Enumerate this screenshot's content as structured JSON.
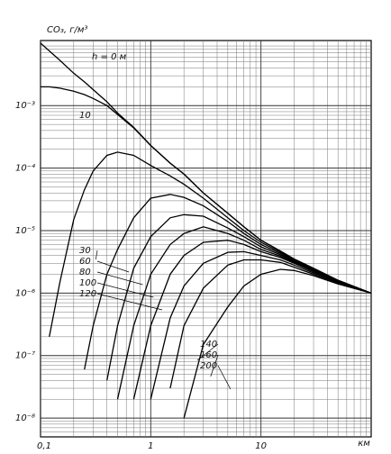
{
  "chart_data": {
    "type": "line",
    "y_label": "CO₃, г/м³",
    "x_label": "км",
    "log_x": true,
    "log_y": true,
    "grid": true,
    "minor_grid": true,
    "color": "#000000",
    "xlim": [
      0.1,
      100
    ],
    "ylim": [
      5e-09,
      0.011
    ],
    "xticks": [
      {
        "value": 0.1,
        "label": "0,1"
      },
      1,
      10
    ],
    "yticks": [
      {
        "value": 0.001,
        "label": "10⁻³"
      },
      {
        "value": 0.0001,
        "label": "10⁻⁴"
      },
      {
        "value": 1e-05,
        "label": "10⁻⁵"
      },
      {
        "value": 1e-06,
        "label": "10⁻⁶"
      },
      {
        "value": 1e-07,
        "label": "10⁻⁷"
      },
      {
        "value": 1e-08,
        "label": "10⁻⁸"
      }
    ],
    "x": [
      0.1,
      0.12,
      0.15,
      0.2,
      0.25,
      0.3,
      0.4,
      0.5,
      0.7,
      1,
      1.5,
      2,
      3,
      5,
      7,
      10,
      15,
      20,
      30,
      50,
      100
    ],
    "series": [
      {
        "name": "h = 0 м",
        "values": [
          0.01,
          0.0075,
          0.0053,
          0.0033,
          0.0024,
          0.0018,
          0.00115,
          0.00076,
          0.00045,
          0.00023,
          0.00012,
          8e-05,
          4e-05,
          1.9e-05,
          1.15e-05,
          7e-06,
          4.7e-06,
          3.5e-06,
          2.5e-06,
          1.6e-06,
          1e-06
        ]
      },
      {
        "name": "10",
        "values": [
          0.002,
          0.002,
          0.0019,
          0.0017,
          0.0015,
          0.0013,
          0.001,
          0.00072,
          0.00044,
          0.00023,
          0.00012,
          8e-05,
          4e-05,
          1.9e-05,
          1.15e-05,
          7e-06,
          4.7e-06,
          3.5e-06,
          2.5e-06,
          1.6e-06,
          1e-06
        ]
      },
      {
        "name": "30",
        "values": [
          null,
          2e-07,
          1.5e-06,
          1.5e-05,
          4.5e-05,
          9e-05,
          0.00016,
          0.00018,
          0.00016,
          0.00011,
          7.5e-05,
          5.5e-05,
          3.3e-05,
          1.6e-05,
          1e-05,
          6.5e-06,
          4.5e-06,
          3.4e-06,
          2.4e-06,
          1.6e-06,
          1e-06
        ]
      },
      {
        "name": "60",
        "values": [
          null,
          null,
          null,
          null,
          6e-08,
          3e-07,
          2e-06,
          5e-06,
          1.6e-05,
          3.3e-05,
          3.8e-05,
          3.4e-05,
          2.5e-05,
          1.4e-05,
          9e-06,
          6e-06,
          4.3e-06,
          3.3e-06,
          2.4e-06,
          1.6e-06,
          1e-06
        ]
      },
      {
        "name": "80",
        "values": [
          null,
          null,
          null,
          null,
          null,
          null,
          4e-08,
          3e-07,
          2.5e-06,
          8e-06,
          1.6e-05,
          1.8e-05,
          1.7e-05,
          1.1e-05,
          8e-06,
          5.5e-06,
          4.1e-06,
          3.2e-06,
          2.3e-06,
          1.55e-06,
          1e-06
        ]
      },
      {
        "name": "100",
        "values": [
          null,
          null,
          null,
          null,
          null,
          null,
          null,
          2e-08,
          3e-07,
          2e-06,
          6e-06,
          9e-06,
          1.15e-05,
          9e-06,
          7e-06,
          5e-06,
          3.9e-06,
          3.1e-06,
          2.3e-06,
          1.55e-06,
          1e-06
        ]
      },
      {
        "name": "120",
        "values": [
          null,
          null,
          null,
          null,
          null,
          null,
          null,
          null,
          2e-08,
          3e-07,
          2e-06,
          4e-06,
          6.5e-06,
          7e-06,
          6e-06,
          4.6e-06,
          3.7e-06,
          3e-06,
          2.2e-06,
          1.5e-06,
          1e-06
        ]
      },
      {
        "name": "140",
        "values": [
          null,
          null,
          null,
          null,
          null,
          null,
          null,
          null,
          null,
          2e-08,
          4e-07,
          1.3e-06,
          3e-06,
          4.5e-06,
          4.6e-06,
          4e-06,
          3.4e-06,
          2.8e-06,
          2.1e-06,
          1.5e-06,
          1e-06
        ]
      },
      {
        "name": "160",
        "values": [
          null,
          null,
          null,
          null,
          null,
          null,
          null,
          null,
          null,
          null,
          3e-08,
          3e-07,
          1.2e-06,
          2.8e-06,
          3.4e-06,
          3.4e-06,
          3.1e-06,
          2.6e-06,
          2e-06,
          1.45e-06,
          1e-06
        ]
      },
      {
        "name": "200",
        "values": [
          null,
          null,
          null,
          null,
          null,
          null,
          null,
          null,
          null,
          null,
          null,
          1e-08,
          1.5e-07,
          6e-07,
          1.3e-06,
          2e-06,
          2.4e-06,
          2.3e-06,
          1.9e-06,
          1.4e-06,
          1e-06
        ]
      }
    ]
  }
}
